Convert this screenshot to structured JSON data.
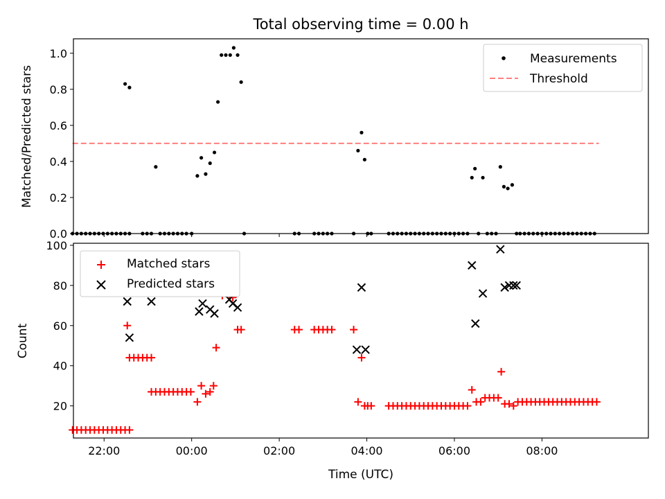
{
  "chart_data": [
    {
      "type": "scatter",
      "title": "Total observing time = 0.00 h",
      "xlabel": "",
      "ylabel": "Matched/Predicted stars",
      "xlim": [
        -2.7,
        10.43
      ],
      "ylim": [
        0,
        1.08
      ],
      "yticks": [
        "0.0",
        "0.2",
        "0.4",
        "0.6",
        "0.8",
        "1.0"
      ],
      "grid": false,
      "legend_position": "top-right",
      "series": [
        {
          "name": "Measurements",
          "marker": "dot",
          "color": "#000000",
          "x": [
            -2.72,
            -2.62,
            -2.52,
            -2.42,
            -2.32,
            -2.22,
            -2.12,
            -2.02,
            -1.92,
            -1.82,
            -1.72,
            -1.62,
            -1.52,
            -1.42,
            -1.52,
            -1.42,
            -1.12,
            -1.02,
            -0.92,
            -0.82,
            -0.72,
            -0.62,
            -0.52,
            -0.42,
            -0.32,
            -0.22,
            -0.12,
            0.0,
            0.13,
            0.22,
            0.32,
            0.42,
            0.52,
            0.6,
            0.68,
            0.78,
            0.88,
            0.96,
            1.05,
            1.13,
            1.2,
            2.35,
            2.45,
            2.8,
            2.9,
            3.0,
            3.1,
            3.2,
            3.7,
            3.8,
            3.88,
            3.95,
            4.02,
            4.1,
            4.5,
            4.6,
            4.7,
            4.8,
            4.9,
            5.0,
            5.1,
            5.2,
            5.3,
            5.4,
            5.5,
            5.6,
            5.7,
            5.8,
            5.9,
            6.0,
            6.1,
            6.2,
            6.3,
            6.4,
            6.47,
            6.55,
            6.65,
            6.75,
            6.85,
            6.95,
            7.05,
            7.13,
            7.22,
            7.32,
            7.42,
            7.5,
            7.6,
            7.7,
            7.8,
            7.9,
            8.0,
            8.1,
            8.2,
            8.3,
            8.4,
            8.5,
            8.6,
            8.7,
            8.8,
            8.9,
            9.0,
            9.1,
            9.2
          ],
          "y": [
            0,
            0,
            0,
            0,
            0,
            0,
            0,
            0,
            0,
            0,
            0,
            0,
            0,
            0,
            0.83,
            0.81,
            0,
            0,
            0,
            0.37,
            0,
            0,
            0,
            0,
            0,
            0,
            0,
            0,
            0.32,
            0.42,
            0.33,
            0.39,
            0.45,
            0.73,
            0.99,
            0.99,
            0.99,
            1.03,
            0.99,
            0.84,
            0,
            0,
            0,
            0,
            0,
            0,
            0,
            0,
            0,
            0.46,
            0.56,
            0.41,
            0,
            0,
            0,
            0,
            0,
            0,
            0,
            0,
            0,
            0,
            0,
            0,
            0,
            0,
            0,
            0,
            0,
            0,
            0,
            0,
            0,
            0.31,
            0.36,
            0,
            0.31,
            0,
            0,
            0,
            0.37,
            0.26,
            0.25,
            0.27,
            0,
            0,
            0,
            0,
            0,
            0,
            0,
            0,
            0,
            0,
            0,
            0,
            0,
            0,
            0,
            0,
            0,
            0,
            0
          ]
        },
        {
          "name": "Threshold",
          "line": "dashed",
          "color": "#ff7f7f",
          "x": [
            -2.72,
            9.3
          ],
          "y": [
            0.5,
            0.5
          ]
        }
      ]
    },
    {
      "type": "scatter",
      "title": "",
      "xlabel": "Time (UTC)",
      "ylabel": "Count",
      "xlim": [
        -2.7,
        10.43
      ],
      "ylim": [
        4,
        101
      ],
      "yticks": [
        "20",
        "40",
        "60",
        "80",
        "100"
      ],
      "xticks": [
        {
          "v": -2,
          "label": "22:00"
        },
        {
          "v": 0,
          "label": "00:00"
        },
        {
          "v": 2,
          "label": "02:00"
        },
        {
          "v": 4,
          "label": "04:00"
        },
        {
          "v": 6,
          "label": "06:00"
        },
        {
          "v": 8,
          "label": "08:00"
        }
      ],
      "grid": false,
      "legend_position": "top-left",
      "series": [
        {
          "name": "Matched stars",
          "marker": "plus",
          "color": "#ff0000",
          "x": [
            -2.72,
            -2.62,
            -2.52,
            -2.42,
            -2.32,
            -2.22,
            -2.12,
            -2.02,
            -1.92,
            -1.82,
            -1.72,
            -1.62,
            -1.52,
            -1.42,
            -1.47,
            -1.42,
            -1.32,
            -1.22,
            -1.12,
            -1.02,
            -0.92,
            -0.92,
            -0.82,
            -0.72,
            -0.62,
            -0.52,
            -0.42,
            -0.32,
            -0.22,
            -0.12,
            -0.02,
            0.13,
            0.22,
            0.32,
            0.42,
            0.5,
            0.56,
            0.62,
            0.7,
            0.78,
            0.86,
            0.94,
            1.05,
            1.13,
            2.35,
            2.45,
            2.8,
            2.9,
            3.0,
            3.1,
            3.2,
            3.7,
            3.8,
            3.88,
            3.95,
            4.02,
            4.1,
            4.5,
            4.6,
            4.7,
            4.8,
            4.9,
            5.0,
            5.1,
            5.2,
            5.3,
            5.4,
            5.5,
            5.6,
            5.7,
            5.8,
            5.9,
            6.0,
            6.1,
            6.2,
            6.3,
            6.4,
            6.5,
            6.6,
            6.7,
            6.8,
            6.9,
            7.0,
            7.07,
            7.15,
            7.25,
            7.35,
            7.45,
            7.55,
            7.65,
            7.75,
            7.85,
            7.95,
            8.05,
            8.15,
            8.25,
            8.35,
            8.45,
            8.55,
            8.65,
            8.75,
            8.85,
            8.95,
            9.05,
            9.15,
            9.25
          ],
          "y": [
            8,
            8,
            8,
            8,
            8,
            8,
            8,
            8,
            8,
            8,
            8,
            8,
            8,
            8,
            60,
            44,
            44,
            44,
            44,
            44,
            44,
            27,
            27,
            27,
            27,
            27,
            27,
            27,
            27,
            27,
            27,
            22,
            30,
            26,
            27,
            30,
            49,
            77,
            75,
            76,
            75,
            74,
            58,
            58,
            58,
            58,
            58,
            58,
            58,
            58,
            58,
            58,
            22,
            44,
            20,
            20,
            20,
            20,
            20,
            20,
            20,
            20,
            20,
            20,
            20,
            20,
            20,
            20,
            20,
            20,
            20,
            20,
            20,
            20,
            20,
            20,
            28,
            22,
            22,
            24,
            24,
            24,
            24,
            37,
            21,
            21,
            20,
            22,
            22,
            22,
            22,
            22,
            22,
            22,
            22,
            22,
            22,
            22,
            22,
            22,
            22,
            22,
            22,
            22,
            22,
            22
          ]
        },
        {
          "name": "Predicted stars",
          "marker": "x",
          "color": "#000000",
          "x": [
            -1.47,
            -1.42,
            -0.92,
            0.17,
            0.25,
            0.32,
            0.42,
            0.52,
            0.6,
            0.68,
            0.78,
            0.86,
            0.94,
            1.05,
            3.77,
            3.88,
            3.97,
            6.4,
            6.48,
            6.65,
            7.05,
            7.15,
            7.25,
            7.35,
            7.42
          ],
          "y": [
            72,
            54,
            72,
            67,
            71,
            78,
            68,
            66,
            77,
            77,
            78,
            73,
            71,
            69,
            48,
            79,
            48,
            90,
            61,
            76,
            98,
            79,
            80,
            80,
            80
          ]
        }
      ]
    }
  ]
}
